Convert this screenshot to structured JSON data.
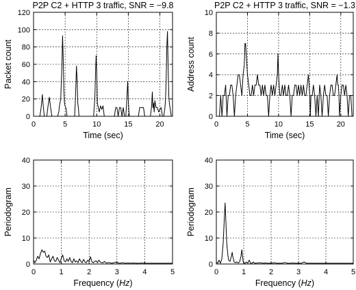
{
  "chart_data": [
    {
      "type": "line",
      "title": "P2P C2 + HTTP 3 traffic, SNR = −9.8",
      "xlabel": "Time (sec)",
      "ylabel": "Packet count",
      "xlim": [
        0,
        22
      ],
      "ylim": [
        0,
        120
      ],
      "xticks": [
        "0",
        "5",
        "10",
        "15",
        "20"
      ],
      "yticks": [
        "0",
        "20",
        "40",
        "60",
        "80",
        "100",
        "120"
      ],
      "grid": true,
      "series": [
        {
          "color": "#000000",
          "x": [
            0,
            1.0,
            1.2,
            1.4,
            1.5,
            1.7,
            1.9,
            2.1,
            2.3,
            2.5,
            2.7,
            2.9,
            3.2,
            3.4,
            3.6,
            3.8,
            4.0,
            4.1,
            4.3,
            4.5,
            4.6,
            4.7,
            4.8,
            4.9,
            5.0,
            5.1,
            5.2,
            5.3,
            5.6,
            5.8,
            6.5,
            6.6,
            6.7,
            6.8,
            6.9,
            7.0,
            7.1,
            7.2,
            7.4,
            7.7,
            9.5,
            9.7,
            9.8,
            9.9,
            10.0,
            10.1,
            10.2,
            10.4,
            10.6,
            10.8,
            11.0,
            11.2,
            11.4,
            12.8,
            13.0,
            13.2,
            13.4,
            13.6,
            13.8,
            14.0,
            14.2,
            14.4,
            14.6,
            14.7,
            14.8,
            14.9,
            15.0,
            15.1,
            15.2,
            16.6,
            16.8,
            17.4,
            17.6,
            18.5,
            18.7,
            18.8,
            18.9,
            19.0,
            19.1,
            19.2,
            19.4,
            19.6,
            19.8,
            20.0,
            20.2,
            20.4,
            20.6,
            20.8,
            20.9,
            21.0,
            21.1,
            21.2,
            21.3,
            21.4,
            21.5,
            21.6,
            21.8
          ],
          "y": [
            0,
            0,
            10,
            25,
            15,
            0,
            0,
            0,
            12,
            22,
            10,
            0,
            0,
            0,
            0,
            0,
            5,
            12,
            20,
            60,
            93,
            65,
            30,
            15,
            12,
            10,
            6,
            0,
            0,
            0,
            0,
            15,
            35,
            58,
            40,
            15,
            10,
            0,
            0,
            0,
            0,
            20,
            45,
            70,
            50,
            15,
            12,
            5,
            12,
            8,
            12,
            0,
            0,
            0,
            10,
            10,
            0,
            10,
            10,
            0,
            10,
            0,
            0,
            10,
            25,
            40,
            20,
            5,
            0,
            0,
            10,
            10,
            0,
            0,
            12,
            28,
            10,
            15,
            5,
            18,
            10,
            10,
            5,
            8,
            10,
            0,
            0,
            10,
            20,
            45,
            80,
            98,
            60,
            25,
            15,
            10,
            0
          ]
        }
      ]
    },
    {
      "type": "line",
      "title": "P2P C2 + HTTP 3 traffic, SNR = −1.3",
      "xlabel": "Time (sec)",
      "ylabel": "Address count",
      "xlim": [
        0,
        22
      ],
      "ylim": [
        0,
        10
      ],
      "xticks": [
        "0",
        "5",
        "10",
        "15",
        "20"
      ],
      "yticks": [
        "0",
        "2",
        "4",
        "6",
        "8",
        "10"
      ],
      "grid": true,
      "series": [
        {
          "color": "#000000",
          "x": [
            0,
            0.5,
            0.7,
            0.9,
            1.1,
            1.3,
            1.5,
            1.7,
            1.9,
            2.1,
            2.3,
            2.5,
            2.7,
            2.9,
            3.1,
            3.3,
            3.5,
            3.7,
            3.9,
            4.1,
            4.3,
            4.5,
            4.6,
            4.7,
            4.8,
            4.9,
            5.0,
            5.2,
            5.4,
            5.6,
            5.8,
            6.0,
            6.2,
            6.4,
            6.6,
            6.8,
            7.0,
            7.2,
            7.4,
            7.6,
            7.8,
            8.0,
            8.2,
            8.4,
            8.6,
            8.8,
            9.0,
            9.2,
            9.4,
            9.6,
            9.8,
            9.9,
            10.0,
            10.1,
            10.2,
            10.4,
            10.6,
            10.8,
            11.0,
            11.2,
            11.4,
            11.6,
            11.8,
            12.0,
            12.2,
            12.4,
            12.6,
            12.8,
            13.0,
            13.2,
            13.4,
            13.6,
            13.8,
            14.0,
            14.2,
            14.4,
            14.6,
            14.8,
            14.9,
            15.0,
            15.1,
            15.2,
            15.4,
            15.6,
            15.8,
            16.0,
            16.2,
            16.4,
            16.6,
            16.8,
            17.0,
            17.2,
            17.4,
            17.6,
            17.8,
            18.0,
            18.2,
            18.4,
            18.6,
            18.8,
            19.0,
            19.2,
            19.4,
            19.5,
            19.6,
            19.7,
            19.8,
            20.0,
            20.2,
            20.4,
            20.6,
            20.8,
            21.0,
            21.2,
            21.4,
            21.6,
            21.8
          ],
          "y": [
            0,
            0,
            2,
            0,
            2,
            2,
            3,
            0,
            2,
            2,
            3,
            3,
            2,
            0,
            2,
            3,
            4,
            4,
            3,
            2,
            4,
            5,
            7,
            7,
            6,
            5,
            4,
            3,
            2,
            2,
            3,
            2,
            3,
            3,
            4,
            3,
            3,
            2,
            3,
            2,
            3,
            2,
            2,
            0,
            2,
            3,
            2,
            3,
            2,
            3,
            4,
            6,
            4,
            3,
            2,
            2,
            3,
            2,
            3,
            2,
            2,
            3,
            2,
            0,
            2,
            2,
            3,
            3,
            2,
            3,
            2,
            3,
            2,
            3,
            2,
            2,
            3,
            4,
            3,
            2,
            0,
            2,
            2,
            3,
            2,
            0,
            2,
            0,
            3,
            2,
            0,
            2,
            3,
            2,
            2,
            0,
            2,
            3,
            3,
            2,
            2,
            3,
            4,
            3,
            3,
            2,
            0,
            2,
            3,
            3,
            2,
            3,
            2,
            0,
            2,
            2,
            0
          ]
        }
      ]
    },
    {
      "type": "line",
      "title": "",
      "xlabel": "Frequency",
      "xlabel_unit": "Hz",
      "ylabel": "Periodogram",
      "xlim": [
        0,
        5
      ],
      "ylim": [
        0,
        40
      ],
      "xticks": [
        "0",
        "1",
        "2",
        "3",
        "4",
        "5"
      ],
      "yticks": [
        "0",
        "10",
        "20",
        "30",
        "40"
      ],
      "grid": true,
      "series": [
        {
          "color": "#000000",
          "x": [
            0,
            0.05,
            0.1,
            0.15,
            0.2,
            0.25,
            0.3,
            0.35,
            0.4,
            0.45,
            0.5,
            0.55,
            0.6,
            0.65,
            0.7,
            0.75,
            0.8,
            0.85,
            0.9,
            0.95,
            1.0,
            1.05,
            1.1,
            1.15,
            1.2,
            1.25,
            1.3,
            1.35,
            1.4,
            1.45,
            1.5,
            1.55,
            1.6,
            1.65,
            1.7,
            1.75,
            1.8,
            1.85,
            1.9,
            1.95,
            2.0,
            2.05,
            2.1,
            2.15,
            2.2,
            2.25,
            2.3,
            2.35,
            2.4,
            2.45,
            2.5,
            2.55,
            2.6,
            2.65,
            2.7,
            2.8,
            2.9,
            3.0,
            3.05,
            3.1,
            3.2,
            3.3,
            3.4,
            3.5,
            3.6,
            3.7,
            3.8,
            3.9,
            4.0,
            4.2,
            4.4,
            4.6,
            4.8,
            5.0
          ],
          "y": [
            1.5,
            0.5,
            1.5,
            3.0,
            2.0,
            4.0,
            5.5,
            4.5,
            5.0,
            3.0,
            2.5,
            3.5,
            0.8,
            2.0,
            3.0,
            1.2,
            1.0,
            2.5,
            1.5,
            0.5,
            2.2,
            3.5,
            1.2,
            0.8,
            2.0,
            1.0,
            2.5,
            1.0,
            0.5,
            2.0,
            0.8,
            1.2,
            0.5,
            2.0,
            1.0,
            0.5,
            1.8,
            0.8,
            0.5,
            1.5,
            1.0,
            2.8,
            0.8,
            0.5,
            1.0,
            1.2,
            0.5,
            1.5,
            0.8,
            0.5,
            0.5,
            1.0,
            0.5,
            0.4,
            0.6,
            0.3,
            0.5,
            0.8,
            0.4,
            0.3,
            0.5,
            0.3,
            0.4,
            0.3,
            0.4,
            0.3,
            0.3,
            0.4,
            0.3,
            0.3,
            0.3,
            0.3,
            0.3,
            0.3
          ]
        }
      ]
    },
    {
      "type": "line",
      "title": "",
      "xlabel": "Frequency",
      "xlabel_unit": "Hz",
      "ylabel": "Periodogram",
      "xlim": [
        0,
        5
      ],
      "ylim": [
        0,
        40
      ],
      "xticks": [
        "0",
        "1",
        "2",
        "3",
        "4",
        "5"
      ],
      "yticks": [
        "0",
        "10",
        "20",
        "30",
        "40"
      ],
      "grid": true,
      "series": [
        {
          "color": "#000000",
          "x": [
            0,
            0.05,
            0.1,
            0.15,
            0.2,
            0.25,
            0.28,
            0.32,
            0.35,
            0.38,
            0.42,
            0.45,
            0.5,
            0.55,
            0.58,
            0.6,
            0.65,
            0.7,
            0.75,
            0.8,
            0.85,
            0.9,
            0.93,
            0.95,
            0.98,
            1.0,
            1.05,
            1.1,
            1.15,
            1.2,
            1.25,
            1.3,
            1.35,
            1.4,
            1.5,
            1.6,
            1.7,
            1.8,
            1.9,
            2.0,
            2.1,
            2.2,
            2.3,
            2.4,
            2.5,
            2.6,
            2.7,
            2.8,
            2.9,
            3.0,
            3.1,
            3.2,
            3.3,
            3.5,
            3.7,
            3.9,
            4.0,
            4.1,
            4.3,
            4.5,
            4.7,
            5.0
          ],
          "y": [
            0.8,
            0.3,
            1.5,
            0.3,
            2.0,
            8.0,
            15.0,
            23.5,
            16.0,
            8.0,
            3.5,
            1.5,
            1.0,
            3.0,
            4.5,
            3.0,
            0.8,
            0.5,
            0.8,
            0.4,
            0.8,
            3.0,
            5.5,
            3.5,
            1.0,
            0.4,
            0.3,
            0.8,
            0.3,
            1.5,
            0.3,
            0.3,
            0.8,
            0.3,
            0.4,
            0.5,
            0.3,
            0.4,
            0.3,
            0.3,
            0.5,
            0.3,
            0.3,
            0.3,
            0.6,
            0.3,
            0.3,
            0.4,
            0.3,
            0.3,
            0.3,
            0.8,
            0.3,
            0.3,
            0.3,
            0.3,
            0.3,
            0.3,
            0.3,
            0.3,
            0.3,
            0.3
          ]
        }
      ]
    }
  ]
}
